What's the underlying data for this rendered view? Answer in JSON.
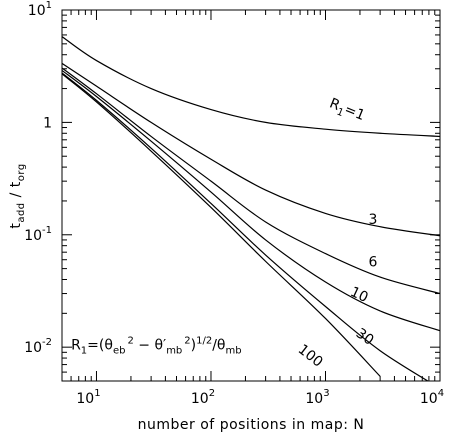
{
  "chart_data": {
    "type": "line",
    "xlabel": "number of positions in map: N",
    "ylabel": {
      "text": "t",
      "sub1": "add",
      "mid": " / t",
      "sub2": "org"
    },
    "xscale": "log",
    "yscale": "log",
    "xlim": [
      5,
      10000
    ],
    "ylim": [
      0.005,
      10
    ],
    "x_ticks": [
      {
        "base": "10",
        "exp": "1",
        "value": 10
      },
      {
        "base": "10",
        "exp": "2",
        "value": 100
      },
      {
        "base": "10",
        "exp": "3",
        "value": 1000
      },
      {
        "base": "10",
        "exp": "4",
        "value": 10000
      }
    ],
    "y_ticks": [
      {
        "base": "10",
        "exp": "-2",
        "value": 0.01
      },
      {
        "base": "10",
        "exp": "-1",
        "value": 0.1
      },
      {
        "base": "1",
        "exp": "",
        "value": 1
      },
      {
        "base": "10",
        "exp": "1",
        "value": 10
      }
    ],
    "grid": false,
    "series": [
      {
        "label": "R₁=1",
        "label_angle": 22,
        "label_pos": [
          1500,
          1.2
        ],
        "points": [
          [
            5,
            5.8
          ],
          [
            10,
            3.55
          ],
          [
            30,
            2.0
          ],
          [
            100,
            1.3
          ],
          [
            300,
            1.0
          ],
          [
            1000,
            0.87
          ],
          [
            3000,
            0.8
          ],
          [
            10000,
            0.75
          ]
        ]
      },
      {
        "label": "3",
        "label_angle": 0,
        "label_pos": [
          2600,
          0.125
        ],
        "points": [
          [
            5,
            3.35
          ],
          [
            10,
            2.1
          ],
          [
            30,
            1.0
          ],
          [
            100,
            0.47
          ],
          [
            300,
            0.25
          ],
          [
            1000,
            0.155
          ],
          [
            3000,
            0.118
          ],
          [
            10000,
            0.098
          ]
        ]
      },
      {
        "label": "6",
        "label_angle": 0,
        "label_pos": [
          2600,
          0.052
        ],
        "points": [
          [
            5,
            3.05
          ],
          [
            10,
            1.8
          ],
          [
            30,
            0.75
          ],
          [
            100,
            0.3
          ],
          [
            300,
            0.13
          ],
          [
            1000,
            0.068
          ],
          [
            3000,
            0.042
          ],
          [
            10000,
            0.03
          ]
        ]
      },
      {
        "label": "10",
        "label_angle": 25,
        "label_pos": [
          1900,
          0.027
        ],
        "points": [
          [
            5,
            2.9
          ],
          [
            10,
            1.7
          ],
          [
            30,
            0.68
          ],
          [
            100,
            0.24
          ],
          [
            300,
            0.09
          ],
          [
            1000,
            0.038
          ],
          [
            3000,
            0.021
          ],
          [
            10000,
            0.014
          ]
        ]
      },
      {
        "label": "30",
        "label_angle": 35,
        "label_pos": [
          2100,
          0.0115
        ],
        "points": [
          [
            5,
            2.75
          ],
          [
            10,
            1.57
          ],
          [
            30,
            0.59
          ],
          [
            100,
            0.19
          ],
          [
            300,
            0.066
          ],
          [
            1000,
            0.023
          ],
          [
            3000,
            0.0093
          ],
          [
            10000,
            0.0043
          ]
        ]
      },
      {
        "label": "100",
        "label_angle": 38,
        "label_pos": [
          700,
          0.0078
        ],
        "points": [
          [
            5,
            2.7
          ],
          [
            10,
            1.52
          ],
          [
            30,
            0.555
          ],
          [
            100,
            0.175
          ],
          [
            300,
            0.058
          ],
          [
            1000,
            0.018
          ],
          [
            3000,
            0.0055
          ]
        ]
      }
    ],
    "annotation": {
      "pos": [
        6,
        0.0095
      ],
      "text": "R₁=(θ_eb² − θ′_mb²)^1/2/θ_mb",
      "parts": {
        "r1": "R",
        "r1sub": "1",
        "eq": "=(θ",
        "eb": "eb",
        "sq1": "2",
        "minus": " − θ′",
        "mb": "mb",
        "sq2": "2",
        "close": ")",
        "half": "1/2",
        "slash": "/θ",
        "mb2": "mb"
      }
    }
  }
}
